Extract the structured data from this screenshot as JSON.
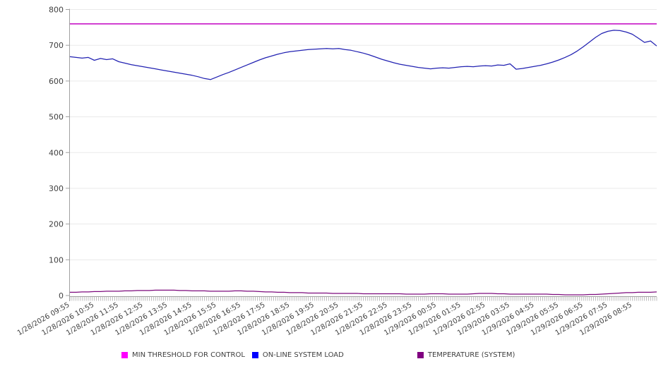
{
  "chart_data": {
    "type": "line",
    "title": "",
    "legend_position": "bottom",
    "grid": "horizontal",
    "colors": {
      "grid_line": "#eaeaea",
      "axis_line": "#a0a0a0",
      "tick_mark": "#adadad",
      "label_text": "#3f3f3f",
      "background": "#ffffff"
    },
    "y_axis": {
      "min": 0,
      "max": 800,
      "step": 100,
      "tick_labels": [
        "0",
        "100",
        "200",
        "300",
        "400",
        "500",
        "600",
        "700",
        "800"
      ]
    },
    "x_axis": {
      "rotation_deg": -30,
      "minor_tick_intervals": 288,
      "labels": [
        "1/28/2026 09:55",
        "1/28/2026 10:55",
        "1/28/2026 11:55",
        "1/28/2026 12:55",
        "1/28/2026 13:55",
        "1/28/2026 14:55",
        "1/28/2026 15:55",
        "1/28/2026 16:55",
        "1/28/2026 17:55",
        "1/28/2026 18:55",
        "1/28/2026 19:55",
        "1/28/2026 20:55",
        "1/28/2026 21:55",
        "1/28/2026 22:55",
        "1/28/2026 23:55",
        "1/29/2026 00:55",
        "1/29/2026 01:55",
        "1/29/2026 02:55",
        "1/29/2026 03:55",
        "1/29/2026 04:55",
        "1/29/2026 05:55",
        "1/29/2026 06:55",
        "1/29/2026 07:55",
        "1/29/2026 08:55"
      ]
    },
    "series": [
      {
        "name": "MIN THRESHOLD FOR CONTROL",
        "color": "#c716c7",
        "legend_color": "#ff00ff",
        "line_width": 1.7,
        "values": [
          760,
          760
        ]
      },
      {
        "name": "ON-LINE SYSTEM LOAD",
        "color": "#2222b2",
        "legend_color": "#0000ff",
        "line_width": 1.25,
        "values": [
          668,
          666,
          664,
          666,
          658,
          663,
          660,
          662,
          654,
          650,
          646,
          643,
          640,
          637,
          634,
          631,
          628,
          625,
          622,
          619,
          616,
          612,
          607,
          604,
          611,
          618,
          624,
          631,
          638,
          645,
          652,
          659,
          665,
          670,
          675,
          679,
          682,
          684,
          686,
          688,
          689,
          690,
          691,
          690,
          691,
          688,
          686,
          682,
          678,
          673,
          667,
          661,
          656,
          651,
          647,
          644,
          641,
          638,
          636,
          634,
          636,
          637,
          636,
          638,
          640,
          641,
          640,
          642,
          643,
          642,
          645,
          644,
          648,
          633,
          635,
          638,
          641,
          644,
          648,
          653,
          659,
          666,
          674,
          684,
          696,
          709,
          722,
          733,
          739,
          742,
          741,
          737,
          731,
          720,
          708,
          712,
          698
        ]
      },
      {
        "name": "TEMPERATURE (SYSTEM)",
        "color": "#7d0a7d",
        "legend_color": "#800080",
        "line_width": 1.2,
        "values": [
          9,
          9,
          10,
          10,
          11,
          11,
          12,
          12,
          12,
          13,
          13,
          14,
          14,
          14,
          15,
          15,
          15,
          15,
          14,
          14,
          13,
          13,
          13,
          12,
          12,
          12,
          12,
          13,
          13,
          12,
          12,
          11,
          10,
          10,
          9,
          9,
          8,
          8,
          8,
          7,
          7,
          7,
          7,
          6,
          6,
          6,
          6,
          6,
          5,
          5,
          5,
          5,
          5,
          5,
          5,
          4,
          4,
          4,
          4,
          5,
          5,
          5,
          4,
          4,
          4,
          4,
          5,
          6,
          6,
          6,
          5,
          5,
          4,
          4,
          4,
          4,
          4,
          4,
          4,
          3,
          3,
          2,
          2,
          2,
          2,
          3,
          3,
          4,
          5,
          6,
          7,
          8,
          8,
          9,
          9,
          9,
          10
        ]
      }
    ]
  }
}
